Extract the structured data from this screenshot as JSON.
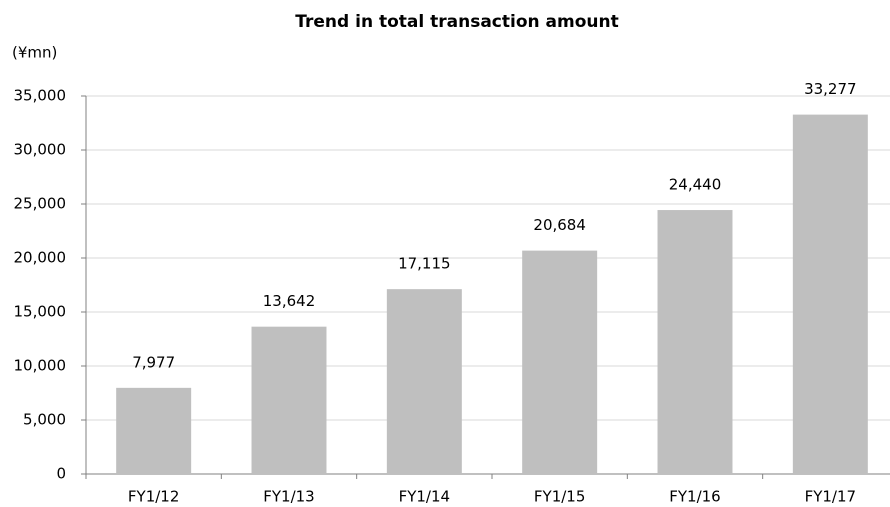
{
  "chart_data": {
    "type": "bar",
    "title": "Trend in total transaction amount",
    "unit_label": "(¥mn)",
    "categories": [
      "FY1/12",
      "FY1/13",
      "FY1/14",
      "FY1/15",
      "FY1/16",
      "FY1/17"
    ],
    "values": [
      7977,
      13642,
      17115,
      20684,
      24440,
      33277
    ],
    "value_labels": [
      "7,977",
      "13,642",
      "17,115",
      "20,684",
      "24,440",
      "33,277"
    ],
    "color": "#bfbfbf",
    "ylim": [
      0,
      35000
    ],
    "yticks": [
      0,
      {
        "value": 5000,
        "label": "5,000"
      },
      {
        "value": 10000,
        "label": "10,000"
      },
      {
        "value": 15000,
        "label": "15,000"
      },
      {
        "value": 20000,
        "label": "20,000"
      },
      {
        "value": 25000,
        "label": "25,000"
      },
      {
        "value": 30000,
        "label": "30,000"
      },
      {
        "value": 35000,
        "label": "35,000"
      }
    ],
    "grid": true
  }
}
